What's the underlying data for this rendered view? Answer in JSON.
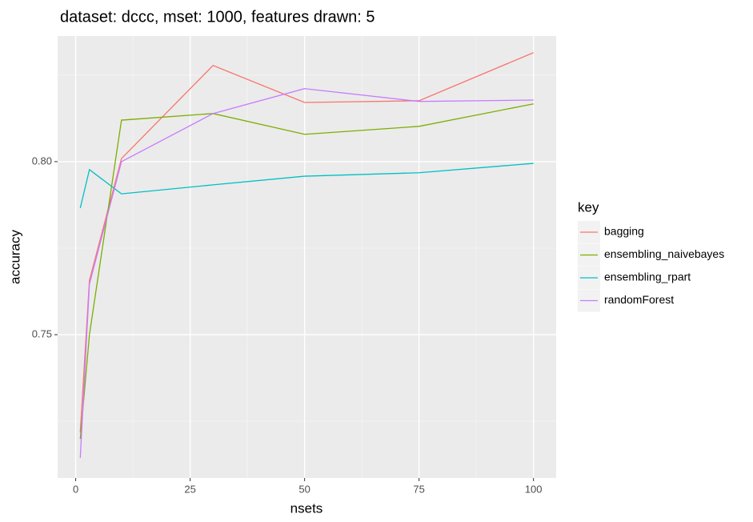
{
  "chart_data": {
    "type": "line",
    "title": "dataset: dccc, mset: 1000, features drawn: 5",
    "x_label": "nsets",
    "y_label": "accuracy",
    "x": [
      1,
      3,
      10,
      30,
      50,
      75,
      100
    ],
    "series": [
      {
        "name": "bagging",
        "color": "#f8766d",
        "values": [
          0.7218,
          0.7657,
          0.8009,
          0.8278,
          0.8171,
          0.8176,
          0.8315
        ]
      },
      {
        "name": "ensembling_naivebayes",
        "color": "#7cae00",
        "values": [
          0.7199,
          0.75,
          0.812,
          0.8139,
          0.8079,
          0.8102,
          0.8167
        ]
      },
      {
        "name": "ensembling_rpart",
        "color": "#00bfc4",
        "values": [
          0.7866,
          0.7977,
          0.7907,
          0.7933,
          0.7958,
          0.7968,
          0.7995
        ]
      },
      {
        "name": "randomForest",
        "color": "#c77cff",
        "values": [
          0.7144,
          0.7646,
          0.8,
          0.8139,
          0.8211,
          0.8174,
          0.8178
        ]
      }
    ],
    "legend_title": "key",
    "xlim": [
      -3.95,
      104.95
    ],
    "xticks": [
      0,
      25,
      50,
      75,
      100
    ],
    "ylim": [
      0.7086,
      0.8363
    ],
    "yticks": [
      0.75,
      {
        "value": 0.8,
        "label": "0.80"
      }
    ],
    "grid": true,
    "legend_position": "right"
  }
}
